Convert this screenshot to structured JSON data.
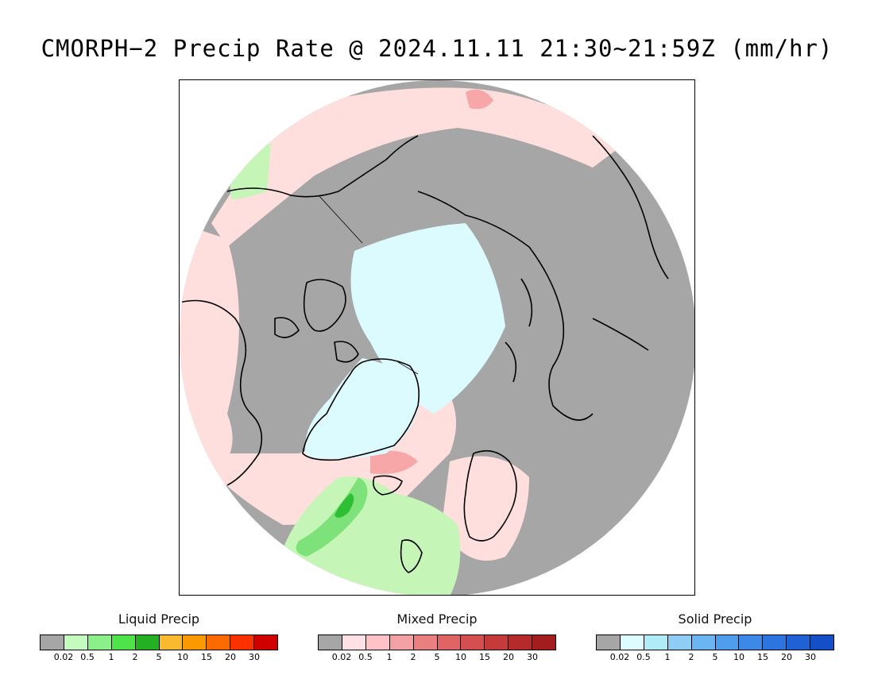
{
  "title": "CMORPH−2 Precip Rate @ 2024.11.11 21:30~21:59Z (mm/hr)",
  "map": {
    "projection": "north polar stereographic",
    "colors": {
      "no_precip": "#a6a6a6",
      "liquid_light": "#c6f5b8",
      "liquid_mid": "#7ee27a",
      "liquid_heavy": "#2fbf35",
      "mixed_light": "#ffdede",
      "mixed_mid": "#f7a7a7",
      "mixed_heavy": "#e26b6b",
      "solid_light": "#dcfbff",
      "coastline": "#000000"
    }
  },
  "legends": [
    {
      "title": "Liquid Precip",
      "colors": [
        "#a6a6a6",
        "#c6fbc0",
        "#8cf08a",
        "#4ee24b",
        "#23b023",
        "#f9ba2f",
        "#fb9a00",
        "#fb6a00",
        "#fb3200",
        "#d00000"
      ],
      "ticks": [
        "0.02",
        "0.5",
        "1",
        "2",
        "5",
        "10",
        "15",
        "20",
        "30"
      ]
    },
    {
      "title": "Mixed Precip",
      "colors": [
        "#a6a6a6",
        "#ffe0e4",
        "#ffc2c6",
        "#f3a1a4",
        "#ea7f80",
        "#e06464",
        "#d54f50",
        "#c73a3b",
        "#b52a2b",
        "#a31d1e"
      ],
      "ticks": [
        "0.02",
        "0.5",
        "1",
        "2",
        "5",
        "10",
        "15",
        "20",
        "30"
      ]
    },
    {
      "title": "Solid Precip",
      "colors": [
        "#a6a6a6",
        "#dcfcff",
        "#b0ecf7",
        "#8fcdf5",
        "#6ab5f2",
        "#4f9eee",
        "#3d89e8",
        "#2c75e0",
        "#2062d6",
        "#154fc8"
      ],
      "ticks": [
        "0.02",
        "0.5",
        "1",
        "2",
        "5",
        "10",
        "15",
        "20",
        "30"
      ]
    }
  ]
}
